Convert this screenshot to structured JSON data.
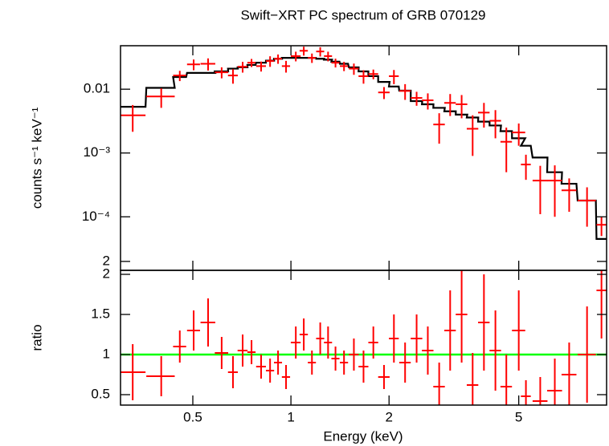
{
  "chart_data": [
    {
      "type": "errorbar",
      "title": "Swift−XRT PC spectrum of GRB 070129",
      "y_label": "counts s⁻¹ keV⁻¹",
      "log_x": true,
      "log_y": true,
      "color": "#ff0000",
      "ylim": [
        1.45e-05,
        0.048
      ],
      "yticks": [
        0.01,
        {
          "value": 0.001,
          "label": "10⁻³"
        },
        {
          "value": 0.0001,
          "label": "10⁻⁴"
        },
        {
          "value": 2e-05,
          "label": "2"
        }
      ],
      "x": [
        0.327,
        0.4,
        0.456,
        0.503,
        0.557,
        0.613,
        0.664,
        0.711,
        0.757,
        0.81,
        0.863,
        0.913,
        0.966,
        1.035,
        1.095,
        1.16,
        1.23,
        1.3,
        1.37,
        1.455,
        1.56,
        1.67,
        1.79,
        1.93,
        2.07,
        2.24,
        2.43,
        2.63,
        2.85,
        3.08,
        3.34,
        3.61,
        3.91,
        4.24,
        4.58,
        5.0,
        5.26,
        5.82,
        6.45,
        7.14,
        8.1,
        8.97
      ],
      "xerr": [
        0.031,
        0.04,
        0.021,
        0.023,
        0.029,
        0.029,
        0.023,
        0.025,
        0.022,
        0.028,
        0.025,
        0.026,
        0.028,
        0.036,
        0.032,
        0.033,
        0.035,
        0.037,
        0.039,
        0.042,
        0.054,
        0.058,
        0.062,
        0.078,
        0.072,
        0.091,
        0.099,
        0.107,
        0.116,
        0.125,
        0.136,
        0.147,
        0.159,
        0.172,
        0.186,
        0.233,
        0.183,
        0.306,
        0.339,
        0.375,
        0.52,
        0.31
      ],
      "values": [
        0.0039,
        0.0077,
        0.0164,
        0.0245,
        0.025,
        0.0184,
        0.0164,
        0.0225,
        0.026,
        0.023,
        0.0276,
        0.03,
        0.023,
        0.033,
        0.04,
        0.031,
        0.039,
        0.033,
        0.026,
        0.023,
        0.021,
        0.016,
        0.0173,
        0.0089,
        0.016,
        0.0094,
        0.0073,
        0.0067,
        0.0028,
        0.0061,
        0.0058,
        0.0024,
        0.0043,
        0.0032,
        0.0015,
        0.0021,
        0.00066,
        0.00037,
        0.00037,
        0.00026,
        0.00018,
        7.5e-05
      ],
      "errors": [
        0.00175,
        0.0026,
        0.003,
        0.0047,
        0.0054,
        0.0036,
        0.0042,
        0.0043,
        0.0038,
        0.0041,
        0.0052,
        0.005,
        0.0048,
        0.0057,
        0.0064,
        0.0052,
        0.0065,
        0.0057,
        0.0041,
        0.0038,
        0.0042,
        0.0038,
        0.003,
        0.0019,
        0.004,
        0.0026,
        0.0018,
        0.0019,
        0.0014,
        0.0023,
        0.0023,
        0.0015,
        0.0018,
        0.0015,
        0.001,
        0.0008,
        0.00028,
        0.00026,
        0.00027,
        0.00014,
        0.00011,
        2.5e-05
      ],
      "model": {
        "color": "#000000",
        "values": [
          0.0053,
          0.0105,
          0.0155,
          0.018,
          0.018,
          0.019,
          0.021,
          0.022,
          0.024,
          0.026,
          0.028,
          0.03,
          0.031,
          0.031,
          0.031,
          0.031,
          0.03,
          0.029,
          0.027,
          0.025,
          0.022,
          0.019,
          0.016,
          0.013,
          0.011,
          0.0095,
          0.0065,
          0.0058,
          0.0051,
          0.0045,
          0.004,
          0.0036,
          0.0031,
          0.0027,
          0.0022,
          0.0017,
          0.0013,
          0.00085,
          0.0005,
          0.00033,
          0.00018,
          4.5e-05
        ]
      }
    },
    {
      "type": "errorbar",
      "x_label": "Energy (keV)",
      "y_label": "ratio",
      "log_x": true,
      "log_y": false,
      "color": "#ff0000",
      "xlim": [
        0.3,
        9.3
      ],
      "xticks": [
        0.5,
        1,
        2,
        5
      ],
      "ylim": [
        0.37,
        2.05
      ],
      "yticks": [
        0.5,
        1,
        1.5,
        2
      ],
      "x": [
        0.327,
        0.4,
        0.456,
        0.503,
        0.557,
        0.613,
        0.664,
        0.711,
        0.757,
        0.81,
        0.863,
        0.913,
        0.966,
        1.035,
        1.095,
        1.16,
        1.23,
        1.3,
        1.37,
        1.455,
        1.56,
        1.67,
        1.79,
        1.93,
        2.07,
        2.24,
        2.43,
        2.63,
        2.85,
        3.08,
        3.34,
        3.61,
        3.91,
        4.24,
        4.58,
        5.0,
        5.26,
        5.82,
        6.45,
        7.14,
        8.1,
        8.97
      ],
      "xerr": [
        0.031,
        0.04,
        0.021,
        0.023,
        0.029,
        0.029,
        0.023,
        0.025,
        0.022,
        0.028,
        0.025,
        0.026,
        0.028,
        0.036,
        0.032,
        0.033,
        0.035,
        0.037,
        0.039,
        0.042,
        0.054,
        0.058,
        0.062,
        0.078,
        0.072,
        0.091,
        0.099,
        0.107,
        0.116,
        0.125,
        0.136,
        0.147,
        0.159,
        0.172,
        0.186,
        0.233,
        0.183,
        0.306,
        0.339,
        0.375,
        0.52,
        0.31
      ],
      "values": [
        0.78,
        0.73,
        1.1,
        1.3,
        1.4,
        1.02,
        0.78,
        1.05,
        1.03,
        0.85,
        0.8,
        0.9,
        0.72,
        1.15,
        1.25,
        0.9,
        1.2,
        1.15,
        0.95,
        0.9,
        1.0,
        0.85,
        1.15,
        0.72,
        1.2,
        0.9,
        1.2,
        1.05,
        0.6,
        1.3,
        1.5,
        0.62,
        1.4,
        1.05,
        0.6,
        1.3,
        0.48,
        0.42,
        0.55,
        0.75,
        1.0,
        1.8
      ],
      "errors": [
        0.35,
        0.25,
        0.2,
        0.25,
        0.3,
        0.2,
        0.2,
        0.2,
        0.15,
        0.15,
        0.15,
        0.15,
        0.15,
        0.2,
        0.2,
        0.15,
        0.2,
        0.2,
        0.15,
        0.15,
        0.2,
        0.2,
        0.2,
        0.15,
        0.3,
        0.25,
        0.3,
        0.3,
        0.3,
        0.5,
        0.6,
        0.4,
        0.6,
        0.5,
        0.4,
        0.5,
        0.2,
        0.3,
        0.4,
        0.4,
        0.6,
        0.6
      ],
      "reference_line": {
        "value": 1,
        "color": "#00ff00"
      }
    }
  ]
}
